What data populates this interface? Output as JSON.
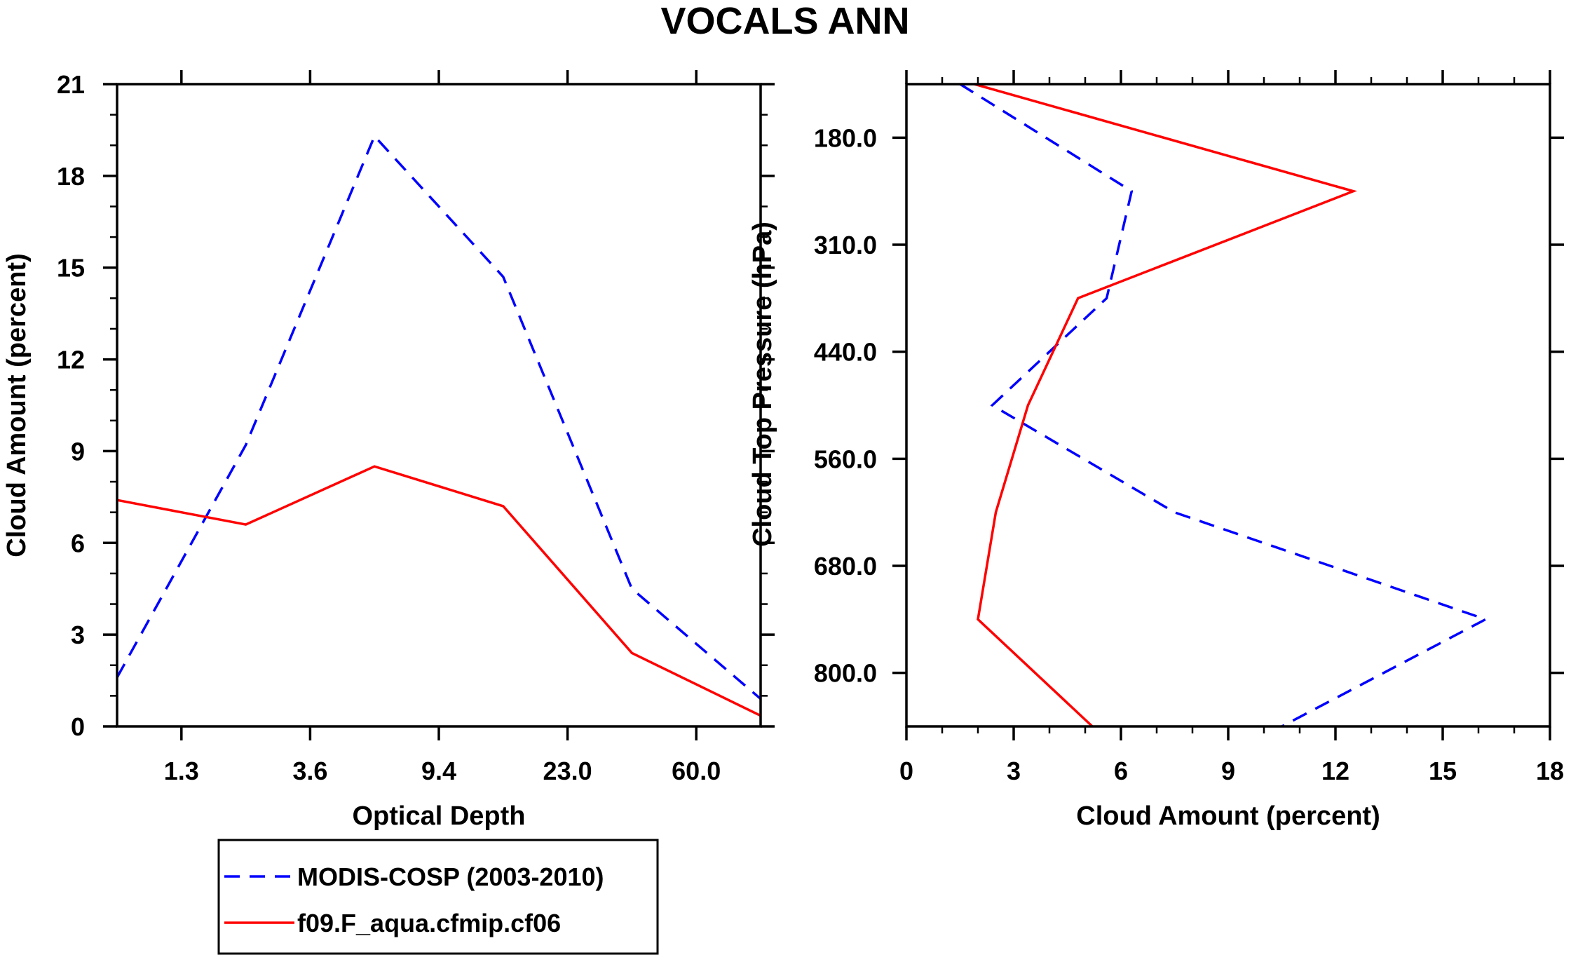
{
  "title": "VOCALS ANN",
  "colors": {
    "modis": "#0000ff",
    "model": "#ff0000",
    "axis": "#000000"
  },
  "legend": {
    "items": [
      {
        "label": "MODIS-COSP (2003-2010)",
        "style": "dashed",
        "color": "#0000ff"
      },
      {
        "label": "f09.F_aqua.cfmip.cf06",
        "style": "solid",
        "color": "#ff0000"
      }
    ]
  },
  "chart_data": [
    {
      "type": "line",
      "xlabel": "Optical Depth",
      "ylabel": "Cloud Amount (percent)",
      "ylim": [
        0,
        21
      ],
      "yticks": [
        "0",
        "3",
        "6",
        "9",
        "12",
        "15",
        "18",
        "21"
      ],
      "xlim": [
        0,
        10
      ],
      "xticks": [
        {
          "label": "1.3",
          "x": 1
        },
        {
          "label": "3.6",
          "x": 3
        },
        {
          "label": "9.4",
          "x": 5
        },
        {
          "label": "23.0",
          "x": 7
        },
        {
          "label": "60.0",
          "x": 9
        }
      ],
      "series": [
        {
          "name": "MODIS-COSP (2003-2010)",
          "x": [
            0,
            2,
            4,
            6,
            8,
            10
          ],
          "values": [
            1.6,
            9.2,
            19.3,
            14.7,
            4.5,
            0.9
          ]
        },
        {
          "name": "f09.F_aqua.cfmip.cf06",
          "x": [
            0,
            2,
            4,
            6,
            8,
            10
          ],
          "values": [
            7.4,
            6.6,
            8.5,
            7.2,
            2.4,
            0.35
          ]
        }
      ]
    },
    {
      "type": "line",
      "xlabel": "Cloud Amount (percent)",
      "ylabel": "Cloud Top Pressure (hPa)",
      "xlim": [
        0,
        18
      ],
      "xticks": [
        "0",
        "3",
        "6",
        "9",
        "12",
        "15",
        "18"
      ],
      "ylim": [
        1,
        7
      ],
      "y_inverted": true,
      "yticks": [
        {
          "label": "180.0",
          "y": 1.5
        },
        {
          "label": "310.0",
          "y": 2.5
        },
        {
          "label": "440.0",
          "y": 3.5
        },
        {
          "label": "560.0",
          "y": 4.5
        },
        {
          "label": "680.0",
          "y": 5.5
        },
        {
          "label": "800.0",
          "y": 6.5
        }
      ],
      "series": [
        {
          "name": "MODIS-COSP (2003-2010)",
          "x": [
            1.5,
            6.3,
            5.6,
            2.4,
            7.5,
            16.2,
            10.5
          ],
          "y": [
            1,
            2,
            3,
            4,
            5,
            6,
            7
          ]
        },
        {
          "name": "f09.F_aqua.cfmip.cf06",
          "x": [
            1.9,
            12.5,
            4.8,
            3.4,
            2.5,
            2.0,
            5.2
          ],
          "y": [
            1,
            2,
            3,
            4,
            5,
            6,
            7
          ]
        }
      ]
    }
  ]
}
